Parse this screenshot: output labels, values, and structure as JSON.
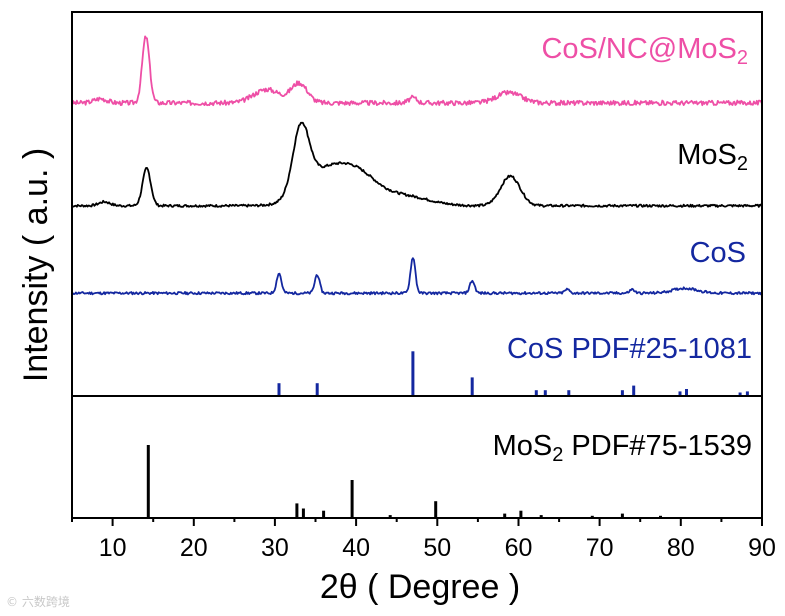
{
  "chart_data": {
    "type": "line",
    "xlabel": "2θ ( Degree )",
    "ylabel": "Intensity ( a.u. )",
    "xlim": [
      5,
      90
    ],
    "xticks": [
      10,
      20,
      30,
      40,
      50,
      60,
      70,
      80,
      90
    ],
    "grid": false,
    "series": [
      {
        "name": "CoS/NC@MoS",
        "name_sub": "2",
        "color": "#ee4fa6",
        "kind": "pattern",
        "baseline": 0.06,
        "peaks": [
          [
            8.5,
            0.05,
            0.8
          ],
          [
            14.1,
            0.78,
            0.45
          ],
          [
            29.0,
            0.16,
            1.6
          ],
          [
            33.0,
            0.23,
            1.0
          ],
          [
            47.0,
            0.06,
            0.5
          ],
          [
            58.8,
            0.12,
            1.5
          ]
        ],
        "noise": 0.055,
        "seed": 3
      },
      {
        "name": "MoS",
        "name_sub": "2",
        "color": "#000000",
        "kind": "pattern",
        "baseline": 0.08,
        "peaks": [
          [
            9.0,
            0.05,
            0.7
          ],
          [
            14.2,
            0.48,
            0.5
          ],
          [
            33.2,
            0.82,
            1.0
          ],
          [
            35.5,
            0.35,
            2.5
          ],
          [
            39.8,
            0.42,
            2.6
          ],
          [
            46.0,
            0.12,
            3.0
          ],
          [
            59.0,
            0.38,
            1.2
          ]
        ],
        "noise": 0.03,
        "seed": 7
      },
      {
        "name": "CoS",
        "color": "#1428a0",
        "kind": "pattern",
        "baseline": 0.03,
        "peaks": [
          [
            30.5,
            0.32,
            0.3
          ],
          [
            35.2,
            0.3,
            0.3
          ],
          [
            47.0,
            0.58,
            0.3
          ],
          [
            54.3,
            0.2,
            0.3
          ],
          [
            66.0,
            0.06,
            0.3
          ],
          [
            74.0,
            0.06,
            0.3
          ],
          [
            80.5,
            0.08,
            1.5
          ]
        ],
        "noise": 0.04,
        "seed": 11
      },
      {
        "name": "CoS PDF#25-1081",
        "color": "#1428a0",
        "kind": "sticks",
        "sticks": [
          [
            30.5,
            0.22
          ],
          [
            35.2,
            0.22
          ],
          [
            47.0,
            0.77
          ],
          [
            54.3,
            0.32
          ],
          [
            62.2,
            0.1
          ],
          [
            63.3,
            0.1
          ],
          [
            66.2,
            0.1
          ],
          [
            72.8,
            0.1
          ],
          [
            74.2,
            0.18
          ],
          [
            79.9,
            0.08
          ],
          [
            80.7,
            0.12
          ],
          [
            87.3,
            0.06
          ],
          [
            88.2,
            0.08
          ]
        ]
      },
      {
        "name": "MoS",
        "name_sub": "2",
        "name_suffix": " PDF#75-1539",
        "color": "#000000",
        "kind": "sticks",
        "sticks": [
          [
            14.4,
            1.0
          ],
          [
            32.7,
            0.2
          ],
          [
            33.5,
            0.13
          ],
          [
            36.0,
            0.1
          ],
          [
            39.5,
            0.52
          ],
          [
            44.2,
            0.04
          ],
          [
            49.8,
            0.23
          ],
          [
            58.3,
            0.06
          ],
          [
            60.3,
            0.1
          ],
          [
            62.8,
            0.04
          ],
          [
            69.1,
            0.03
          ],
          [
            72.8,
            0.06
          ],
          [
            77.5,
            0.03
          ]
        ]
      }
    ]
  }
}
